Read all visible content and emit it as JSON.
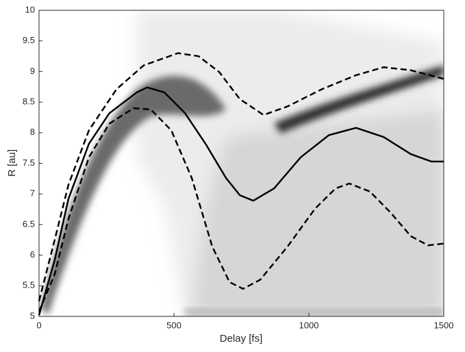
{
  "chart_data": {
    "type": "line",
    "x_label": "Delay [fs]",
    "y_label": "R [au]",
    "xlim": [
      0,
      1500
    ],
    "xticks": [
      0,
      500,
      1000,
      1500
    ],
    "ylim": [
      5,
      10
    ],
    "yticks": [
      5,
      5.5,
      6,
      6.5,
      7,
      7.5,
      8,
      8.5,
      9,
      9.5,
      10
    ],
    "series": [
      {
        "color": "#000000",
        "dash": false,
        "x": [
          0,
          58,
          109,
          185,
          261,
          363,
          401,
          464,
          541,
          617,
          693,
          744,
          794,
          871,
          970,
          1074,
          1175,
          1277,
          1378,
          1454,
          1500
        ],
        "values": [
          5.02,
          5.92,
          6.92,
          7.82,
          8.32,
          8.66,
          8.74,
          8.66,
          8.32,
          7.82,
          7.26,
          6.98,
          6.89,
          7.09,
          7.6,
          7.96,
          8.08,
          7.93,
          7.65,
          7.53,
          7.53
        ]
      },
      {
        "color": "#000000",
        "dash": true,
        "x": [
          0,
          58,
          109,
          185,
          287,
          388,
          515,
          591,
          668,
          744,
          832,
          921,
          1048,
          1175,
          1277,
          1378,
          1500
        ],
        "values": [
          5.25,
          6.25,
          7.15,
          8.04,
          8.71,
          9.1,
          9.3,
          9.25,
          8.99,
          8.55,
          8.29,
          8.43,
          8.71,
          8.94,
          9.07,
          9.02,
          8.88
        ]
      },
      {
        "color": "#000000",
        "dash": true,
        "x": [
          0,
          58,
          109,
          185,
          261,
          350,
          414,
          490,
          566,
          642,
          706,
          756,
          820,
          921,
          1023,
          1099,
          1150,
          1226,
          1302,
          1378,
          1442,
          1500
        ],
        "values": [
          5.08,
          5.69,
          6.59,
          7.6,
          8.15,
          8.4,
          8.38,
          8.04,
          7.26,
          6.14,
          5.56,
          5.45,
          5.6,
          6.14,
          6.76,
          7.09,
          7.17,
          7.04,
          6.7,
          6.31,
          6.16,
          6.19
        ]
      }
    ]
  }
}
